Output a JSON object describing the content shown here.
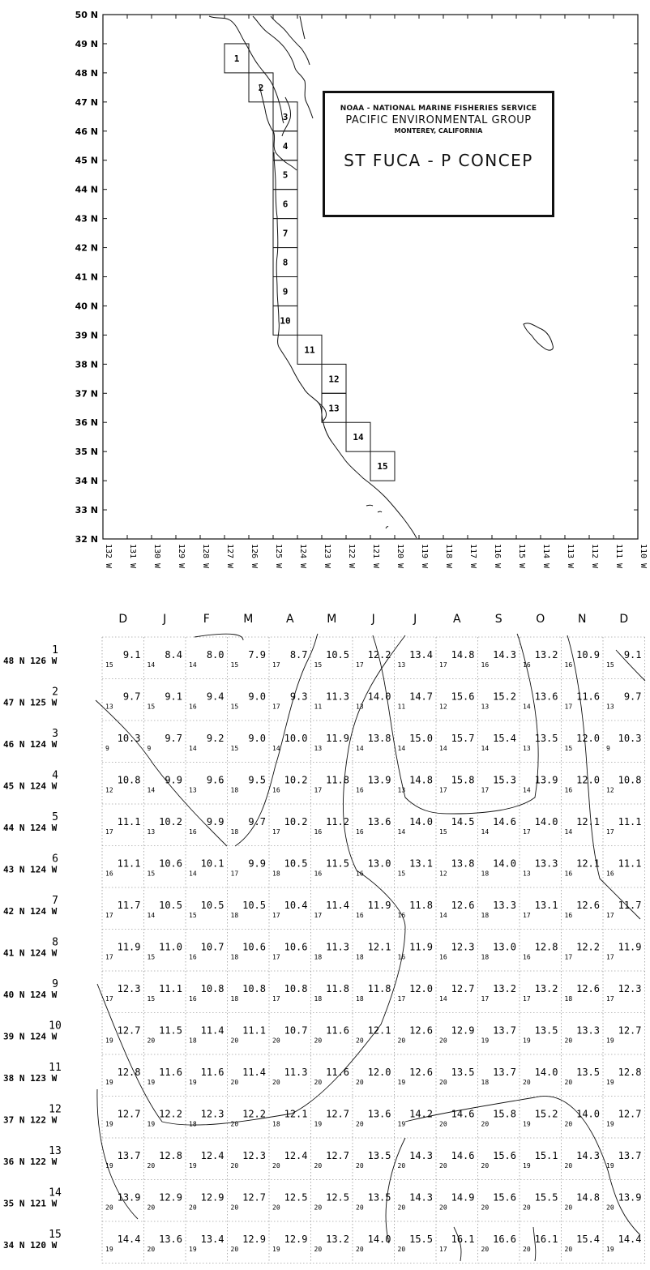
{
  "map": {
    "lat_labels": [
      "50 N",
      "49 N",
      "48 N",
      "47 N",
      "46 N",
      "45 N",
      "44 N",
      "43 N",
      "42 N",
      "41 N",
      "40 N",
      "39 N",
      "38 N",
      "37 N",
      "36 N",
      "35 N",
      "34 N",
      "33 N",
      "32 N"
    ],
    "lon_labels": [
      "132 W",
      "131 W",
      "130 W",
      "129 W",
      "128 W",
      "127 W",
      "126 W",
      "125 W",
      "124 W",
      "123 W",
      "122 W",
      "121 W",
      "120 W",
      "119 W",
      "118 W",
      "117 W",
      "116 W",
      "115 W",
      "114 W",
      "113 W",
      "112 W",
      "111 W",
      "110 W"
    ],
    "lat_range": [
      32,
      50
    ],
    "lon_range": [
      -132,
      -110
    ],
    "boxes": [
      {
        "label": "1",
        "lat": 48,
        "lon": -127
      },
      {
        "label": "2",
        "lat": 47,
        "lon": -126
      },
      {
        "label": "3",
        "lat": 46,
        "lon": -125
      },
      {
        "label": "4",
        "lat": 45,
        "lon": -125
      },
      {
        "label": "5",
        "lat": 44,
        "lon": -125
      },
      {
        "label": "6",
        "lat": 43,
        "lon": -125
      },
      {
        "label": "7",
        "lat": 42,
        "lon": -125
      },
      {
        "label": "8",
        "lat": 41,
        "lon": -125
      },
      {
        "label": "9",
        "lat": 40,
        "lon": -125
      },
      {
        "label": "10",
        "lat": 39,
        "lon": -125
      },
      {
        "label": "11",
        "lat": 38,
        "lon": -124
      },
      {
        "label": "12",
        "lat": 37,
        "lon": -123
      },
      {
        "label": "13",
        "lat": 36,
        "lon": -123
      },
      {
        "label": "14",
        "lat": 35,
        "lon": -122
      },
      {
        "label": "15",
        "lat": 34,
        "lon": -121
      }
    ],
    "coastline_color": "#111111"
  },
  "title_box": {
    "line1": "NOAA - NATIONAL MARINE FISHERIES SERVICE",
    "line2": "PACIFIC ENVIRONMENTAL GROUP",
    "line3": "MONTEREY, CALIFORNIA",
    "line4": "ST FUCA - P CONCEP"
  },
  "table": {
    "months": [
      "D",
      "J",
      "F",
      "M",
      "A",
      "M",
      "J",
      "J",
      "A",
      "S",
      "O",
      "N",
      "D"
    ],
    "rows": [
      {
        "num": "1",
        "pos": "48 N 126 W",
        "values": [
          "9.1",
          "8.4",
          "8.0",
          "7.9",
          "8.7",
          "10.5",
          "12.2",
          "13.4",
          "14.8",
          "14.3",
          "13.2",
          "10.9",
          "9.1"
        ],
        "counts": [
          "15",
          "14",
          "14",
          "15",
          "17",
          "15",
          "17",
          "13",
          "17",
          "16",
          "16",
          "16",
          "15"
        ]
      },
      {
        "num": "2",
        "pos": "47 N 125 W",
        "values": [
          "9.7",
          "9.1",
          "9.4",
          "9.0",
          "9.3",
          "11.3",
          "14.0",
          "14.7",
          "15.6",
          "15.2",
          "13.6",
          "11.6",
          "9.7"
        ],
        "counts": [
          "13",
          "15",
          "16",
          "15",
          "17",
          "11",
          "13",
          "11",
          "12",
          "13",
          "14",
          "17",
          "13"
        ]
      },
      {
        "num": "3",
        "pos": "46 N 124 W",
        "values": [
          "10.3",
          "9.7",
          "9.2",
          "9.0",
          "10.0",
          "11.9",
          "13.8",
          "15.0",
          "15.7",
          "15.4",
          "13.5",
          "12.0",
          "10.3"
        ],
        "counts": [
          "9",
          "9",
          "14",
          "15",
          "14",
          "13",
          "14",
          "14",
          "14",
          "14",
          "13",
          "15",
          "9"
        ]
      },
      {
        "num": "4",
        "pos": "45 N 124 W",
        "values": [
          "10.8",
          "9.9",
          "9.6",
          "9.5",
          "10.2",
          "11.8",
          "13.9",
          "14.8",
          "15.8",
          "15.3",
          "13.9",
          "12.0",
          "10.8"
        ],
        "counts": [
          "12",
          "14",
          "13",
          "18",
          "16",
          "17",
          "16",
          "13",
          "17",
          "17",
          "14",
          "16",
          "12"
        ]
      },
      {
        "num": "5",
        "pos": "44 N 124 W",
        "values": [
          "11.1",
          "10.2",
          "9.9",
          "9.7",
          "10.2",
          "11.2",
          "13.6",
          "14.0",
          "14.5",
          "14.6",
          "14.0",
          "12.1",
          "11.1"
        ],
        "counts": [
          "17",
          "13",
          "16",
          "18",
          "17",
          "16",
          "16",
          "14",
          "15",
          "14",
          "17",
          "14",
          "17"
        ]
      },
      {
        "num": "6",
        "pos": "43 N 124 W",
        "values": [
          "11.1",
          "10.6",
          "10.1",
          "9.9",
          "10.5",
          "11.5",
          "13.0",
          "13.1",
          "13.8",
          "14.0",
          "13.3",
          "12.1",
          "11.1"
        ],
        "counts": [
          "16",
          "15",
          "14",
          "17",
          "18",
          "16",
          "16",
          "15",
          "12",
          "18",
          "13",
          "16",
          "16"
        ]
      },
      {
        "num": "7",
        "pos": "42 N 124 W",
        "values": [
          "11.7",
          "10.5",
          "10.5",
          "10.5",
          "10.4",
          "11.4",
          "11.9",
          "11.8",
          "12.6",
          "13.3",
          "13.1",
          "12.6",
          "11.7"
        ],
        "counts": [
          "17",
          "14",
          "15",
          "18",
          "17",
          "17",
          "16",
          "16",
          "14",
          "18",
          "17",
          "16",
          "17"
        ]
      },
      {
        "num": "8",
        "pos": "41 N 124 W",
        "values": [
          "11.9",
          "11.0",
          "10.7",
          "10.6",
          "10.6",
          "11.3",
          "12.1",
          "11.9",
          "12.3",
          "13.0",
          "12.8",
          "12.2",
          "11.9"
        ],
        "counts": [
          "17",
          "15",
          "16",
          "18",
          "17",
          "18",
          "18",
          "16",
          "16",
          "18",
          "16",
          "17",
          "17"
        ]
      },
      {
        "num": "9",
        "pos": "40 N 124 W",
        "values": [
          "12.3",
          "11.1",
          "10.8",
          "10.8",
          "10.8",
          "11.8",
          "11.8",
          "12.0",
          "12.7",
          "13.2",
          "13.2",
          "12.6",
          "12.3"
        ],
        "counts": [
          "17",
          "15",
          "16",
          "18",
          "17",
          "18",
          "18",
          "17",
          "14",
          "17",
          "17",
          "18",
          "17"
        ]
      },
      {
        "num": "10",
        "pos": "39 N 124 W",
        "values": [
          "12.7",
          "11.5",
          "11.4",
          "11.1",
          "10.7",
          "11.6",
          "12.1",
          "12.6",
          "12.9",
          "13.7",
          "13.5",
          "13.3",
          "12.7"
        ],
        "counts": [
          "19",
          "20",
          "18",
          "20",
          "20",
          "20",
          "20",
          "20",
          "20",
          "19",
          "19",
          "20",
          "19"
        ]
      },
      {
        "num": "11",
        "pos": "38 N 123 W",
        "values": [
          "12.8",
          "11.6",
          "11.6",
          "11.4",
          "11.3",
          "11.6",
          "12.0",
          "12.6",
          "13.5",
          "13.7",
          "14.0",
          "13.5",
          "12.8"
        ],
        "counts": [
          "19",
          "19",
          "19",
          "20",
          "20",
          "20",
          "20",
          "19",
          "20",
          "18",
          "20",
          "20",
          "19"
        ]
      },
      {
        "num": "12",
        "pos": "37 N 122 W",
        "values": [
          "12.7",
          "12.2",
          "12.3",
          "12.2",
          "12.1",
          "12.7",
          "13.6",
          "14.2",
          "14.6",
          "15.8",
          "15.2",
          "14.0",
          "12.7"
        ],
        "counts": [
          "19",
          "19",
          "18",
          "20",
          "18",
          "19",
          "20",
          "19",
          "20",
          "20",
          "19",
          "20",
          "19"
        ]
      },
      {
        "num": "13",
        "pos": "36 N 122 W",
        "values": [
          "13.7",
          "12.8",
          "12.4",
          "12.3",
          "12.4",
          "12.7",
          "13.5",
          "14.3",
          "14.6",
          "15.6",
          "15.1",
          "14.3",
          "13.7"
        ],
        "counts": [
          "19",
          "20",
          "19",
          "20",
          "20",
          "20",
          "20",
          "20",
          "20",
          "20",
          "19",
          "20",
          "19"
        ]
      },
      {
        "num": "14",
        "pos": "35 N 121 W",
        "values": [
          "13.9",
          "12.9",
          "12.9",
          "12.7",
          "12.5",
          "12.5",
          "13.5",
          "14.3",
          "14.9",
          "15.6",
          "15.5",
          "14.8",
          "13.9"
        ],
        "counts": [
          "20",
          "20",
          "20",
          "20",
          "20",
          "20",
          "20",
          "20",
          "20",
          "20",
          "20",
          "20",
          "20"
        ]
      },
      {
        "num": "15",
        "pos": "34 N 120 W",
        "values": [
          "14.4",
          "13.6",
          "13.4",
          "12.9",
          "12.9",
          "13.2",
          "14.0",
          "15.5",
          "16.1",
          "16.6",
          "16.1",
          "15.4",
          "14.4"
        ],
        "counts": [
          "19",
          "20",
          "19",
          "20",
          "19",
          "20",
          "20",
          "20",
          "17",
          "20",
          "20",
          "20",
          "19"
        ]
      }
    ]
  }
}
